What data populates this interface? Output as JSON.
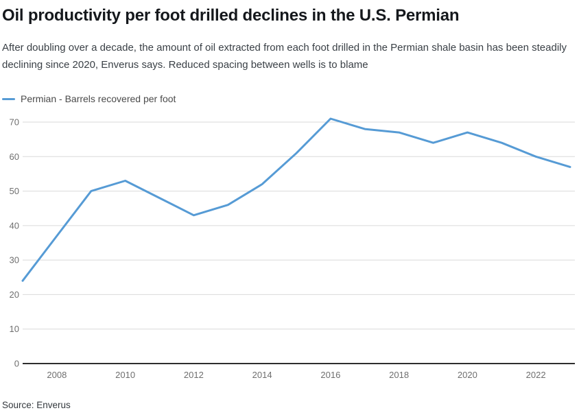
{
  "header": {
    "title": "Oil productivity per foot drilled declines in the U.S. Permian",
    "subtitle": "After doubling over a decade, the amount of oil extracted from each foot drilled in the Permian shale basin has been steadily declining since 2020, Enverus says. Reduced spacing between wells is to blame"
  },
  "legend": {
    "label": "Permian - Barrels recovered per foot"
  },
  "footer": {
    "source": "Source: Enverus"
  },
  "colors": {
    "line": "#569bd5",
    "gridline": "#d9d9d9",
    "axis": "#2e2e2e",
    "tick_label": "#6e6e6e"
  },
  "chart_data": {
    "type": "line",
    "title": "Oil productivity per foot drilled declines in the U.S. Permian",
    "x": [
      2007,
      2008,
      2009,
      2010,
      2011,
      2012,
      2013,
      2014,
      2015,
      2016,
      2017,
      2018,
      2019,
      2020,
      2021,
      2022,
      2023
    ],
    "series": [
      {
        "name": "Permian - Barrels recovered per foot",
        "color": "#569bd5",
        "values": [
          24,
          37,
          50,
          53,
          48,
          43,
          46,
          52,
          61,
          71,
          68,
          67,
          64,
          67,
          64,
          60,
          57
        ]
      }
    ],
    "xticks": [
      2008,
      2010,
      2012,
      2014,
      2016,
      2018,
      2020,
      2022
    ],
    "yticks": [
      0,
      10,
      20,
      30,
      40,
      50,
      60,
      70
    ],
    "ylim": [
      0,
      70
    ],
    "xlabel": "",
    "ylabel": "",
    "grid": true,
    "legend_position": "top-left",
    "source": "Source: Enverus"
  }
}
